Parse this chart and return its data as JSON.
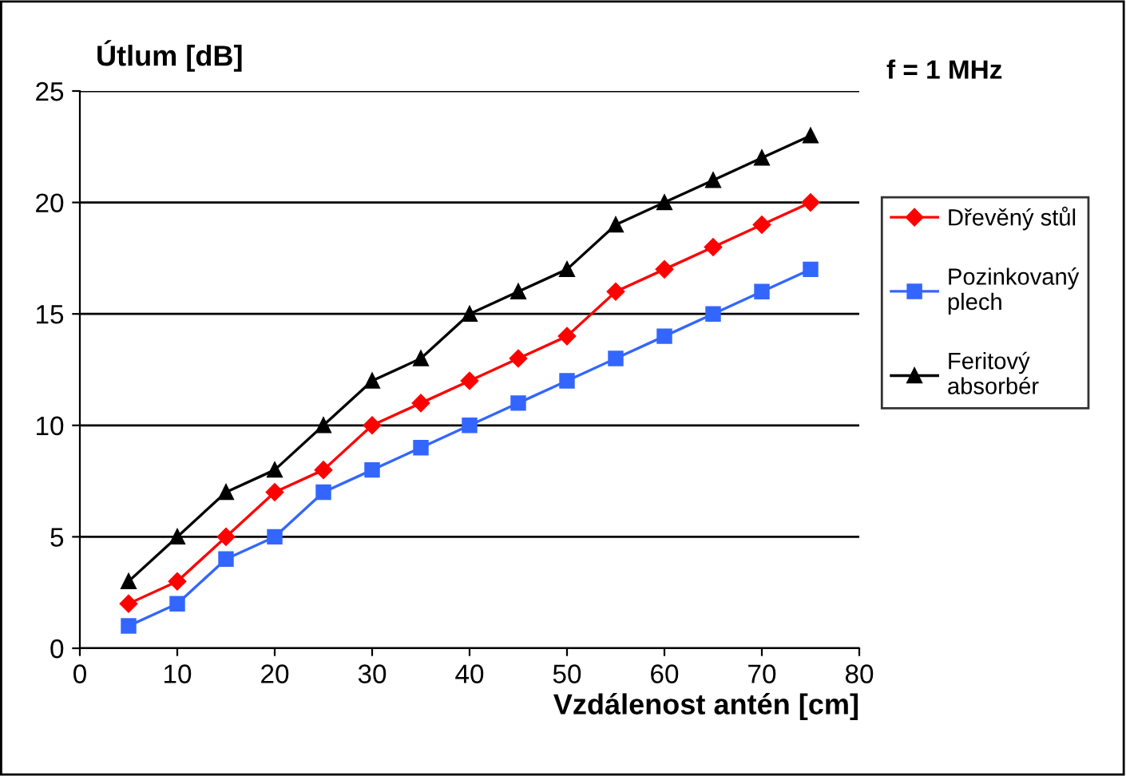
{
  "chart_data": {
    "type": "line",
    "ylabel": "Útlum [dB]",
    "xlabel": "Vzdálenost antén [cm]",
    "annotations": [
      "f = 1 MHz"
    ],
    "x": [
      5,
      10,
      15,
      20,
      25,
      30,
      35,
      40,
      45,
      50,
      55,
      60,
      65,
      70,
      75
    ],
    "series": [
      {
        "name": "Dřevěný stůl",
        "color": "#ff0000",
        "marker": "diamond",
        "values": [
          2,
          3,
          5,
          7,
          8,
          10,
          11,
          12,
          13,
          14,
          16,
          17,
          18,
          19,
          20
        ]
      },
      {
        "name": "Pozinkovaný plech",
        "color": "#3366ff",
        "marker": "square",
        "values": [
          1,
          2,
          4,
          5,
          7,
          8,
          9,
          10,
          11,
          12,
          13,
          14,
          15,
          16,
          17
        ]
      },
      {
        "name": "Feritový absorbér",
        "color": "#000000",
        "marker": "triangle",
        "values": [
          3,
          5,
          7,
          8,
          10,
          12,
          13,
          15,
          16,
          17,
          19,
          20,
          21,
          22,
          23
        ]
      }
    ],
    "xlim": [
      0,
      80
    ],
    "xticks": [
      0,
      10,
      20,
      30,
      40,
      50,
      60,
      70,
      80
    ],
    "ylim": [
      0,
      25
    ],
    "yticks": [
      0,
      5,
      10,
      15,
      20,
      25
    ],
    "grid": "y",
    "legend": "right",
    "line_style": "solid"
  }
}
